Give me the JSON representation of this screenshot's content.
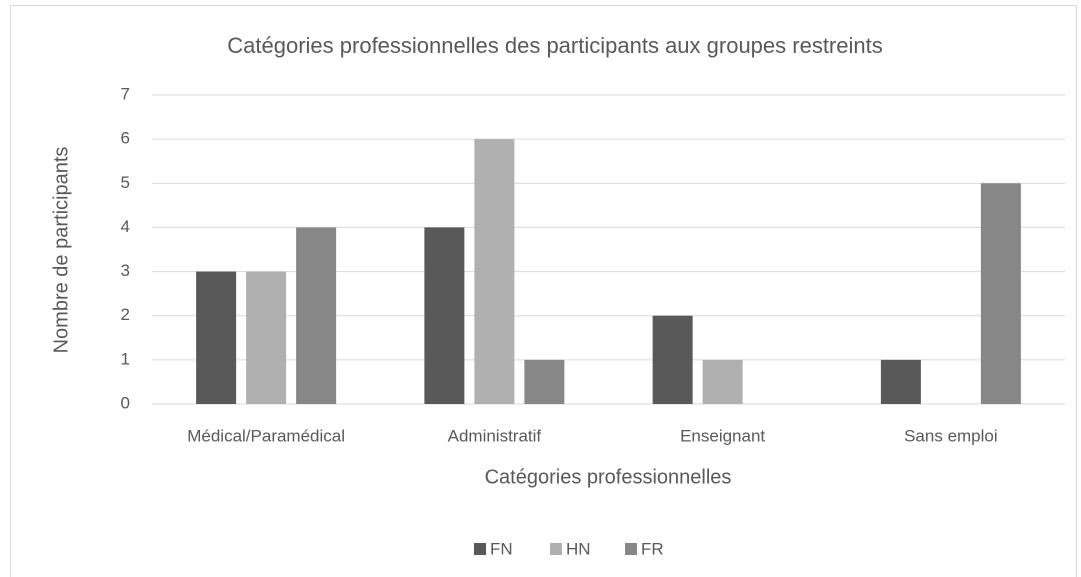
{
  "chart_data": {
    "type": "bar",
    "title": "Catégories professionnelles des participants aux groupes restreints",
    "x_label": "Catégories professionnelles",
    "y_label": "Nombre de participants",
    "categories": [
      "Médical/Paramédical",
      "Administratif",
      "Enseignant",
      "Sans emploi"
    ],
    "series": [
      {
        "name": "FN",
        "color": "#595959",
        "values": [
          3,
          4,
          2,
          1
        ]
      },
      {
        "name": "HN",
        "color": "#b0b0b0",
        "values": [
          3,
          6,
          1,
          0
        ]
      },
      {
        "name": "FR",
        "color": "#878787",
        "values": [
          4,
          1,
          0,
          5
        ]
      }
    ],
    "ylim": [
      0,
      7
    ],
    "yticks": [
      0,
      1,
      2,
      3,
      4,
      5,
      6,
      7
    ],
    "grid": true,
    "legend": "bottom"
  }
}
